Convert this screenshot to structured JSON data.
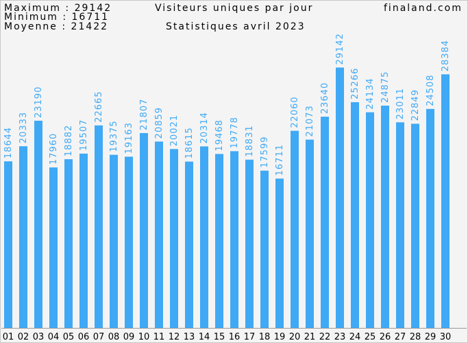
{
  "header": {
    "maximum_label": "Maximum",
    "maximum_value": "29142",
    "minimum_label": "Minimum",
    "minimum_value": "16711",
    "moyenne_label": "Moyenne",
    "moyenne_value": "21422",
    "title": "Visiteurs uniques par jour",
    "subtitle": "Statistiques avril 2023",
    "site": "finaland.com"
  },
  "colors": {
    "bar": "#3fa9f5",
    "background": "#f4f4f4"
  },
  "chart_data": {
    "type": "bar",
    "title": "Visiteurs uniques par jour",
    "subtitle": "Statistiques avril 2023",
    "categories": [
      "01",
      "02",
      "03",
      "04",
      "05",
      "06",
      "07",
      "08",
      "09",
      "10",
      "11",
      "12",
      "13",
      "14",
      "15",
      "16",
      "17",
      "18",
      "19",
      "20",
      "21",
      "22",
      "23",
      "24",
      "25",
      "26",
      "27",
      "28",
      "29",
      "30"
    ],
    "values": [
      18644,
      20333,
      23190,
      17960,
      18882,
      19507,
      22665,
      19375,
      19163,
      21807,
      20859,
      20021,
      18615,
      20314,
      19468,
      19778,
      18831,
      17599,
      16711,
      22060,
      21073,
      23640,
      29142,
      25266,
      24134,
      24875,
      23011,
      22849,
      24508,
      28384
    ],
    "ylim": [
      0,
      36700
    ],
    "grid": false,
    "legend": "none",
    "data_labels": true
  }
}
